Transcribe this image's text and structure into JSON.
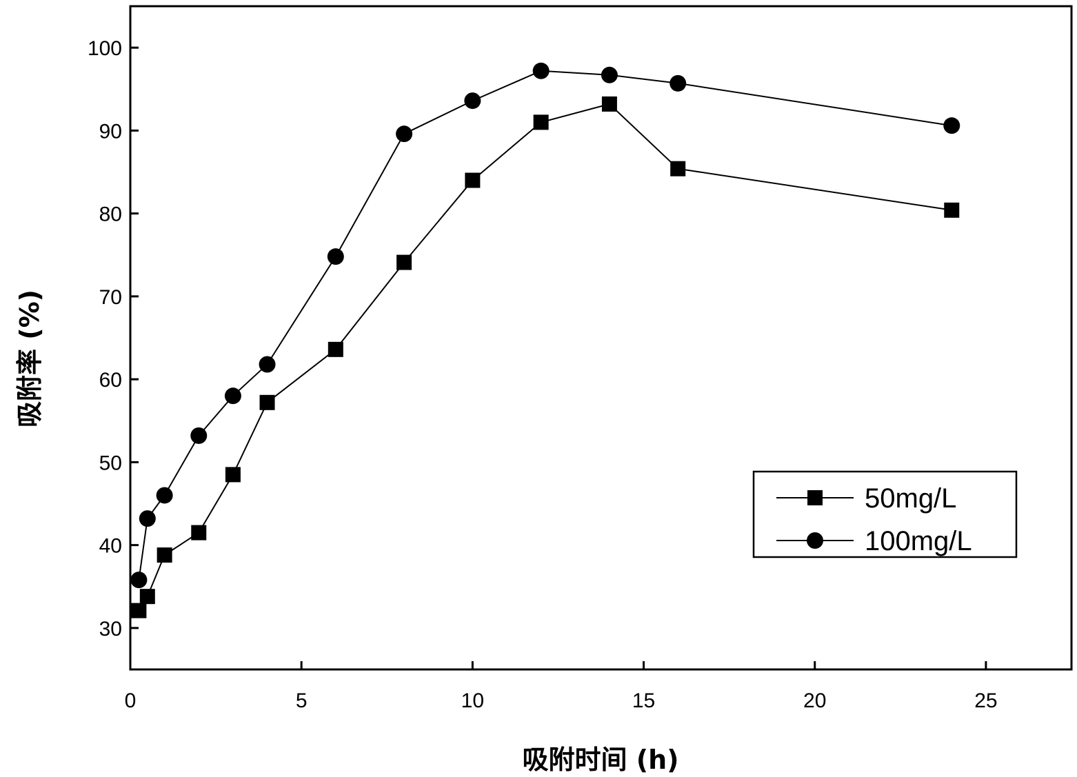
{
  "chart_data": {
    "type": "line",
    "xlabel": "吸附时间 (h)",
    "ylabel": "吸附率 (%)",
    "xlim": [
      0,
      27.5
    ],
    "ylim": [
      25,
      105
    ],
    "xticks": [
      0,
      5,
      10,
      15,
      20,
      25
    ],
    "yticks": [
      30,
      40,
      50,
      60,
      70,
      80,
      90,
      100
    ],
    "legend_position": "right",
    "series": [
      {
        "name": "50mg/L",
        "marker": "square",
        "x": [
          0.25,
          0.5,
          1,
          2,
          3,
          4,
          6,
          8,
          10,
          12,
          14,
          16,
          24
        ],
        "y": [
          32.1,
          33.8,
          38.8,
          41.5,
          48.5,
          57.2,
          63.6,
          74.1,
          84.0,
          91.0,
          93.2,
          85.4,
          80.4
        ]
      },
      {
        "name": "100mg/L",
        "marker": "circle",
        "x": [
          0.25,
          0.5,
          1,
          2,
          3,
          4,
          6,
          8,
          10,
          12,
          14,
          16,
          24
        ],
        "y": [
          35.8,
          43.2,
          46.0,
          53.2,
          58.0,
          61.8,
          74.8,
          89.6,
          93.6,
          97.2,
          96.7,
          95.7,
          90.6
        ]
      }
    ]
  }
}
